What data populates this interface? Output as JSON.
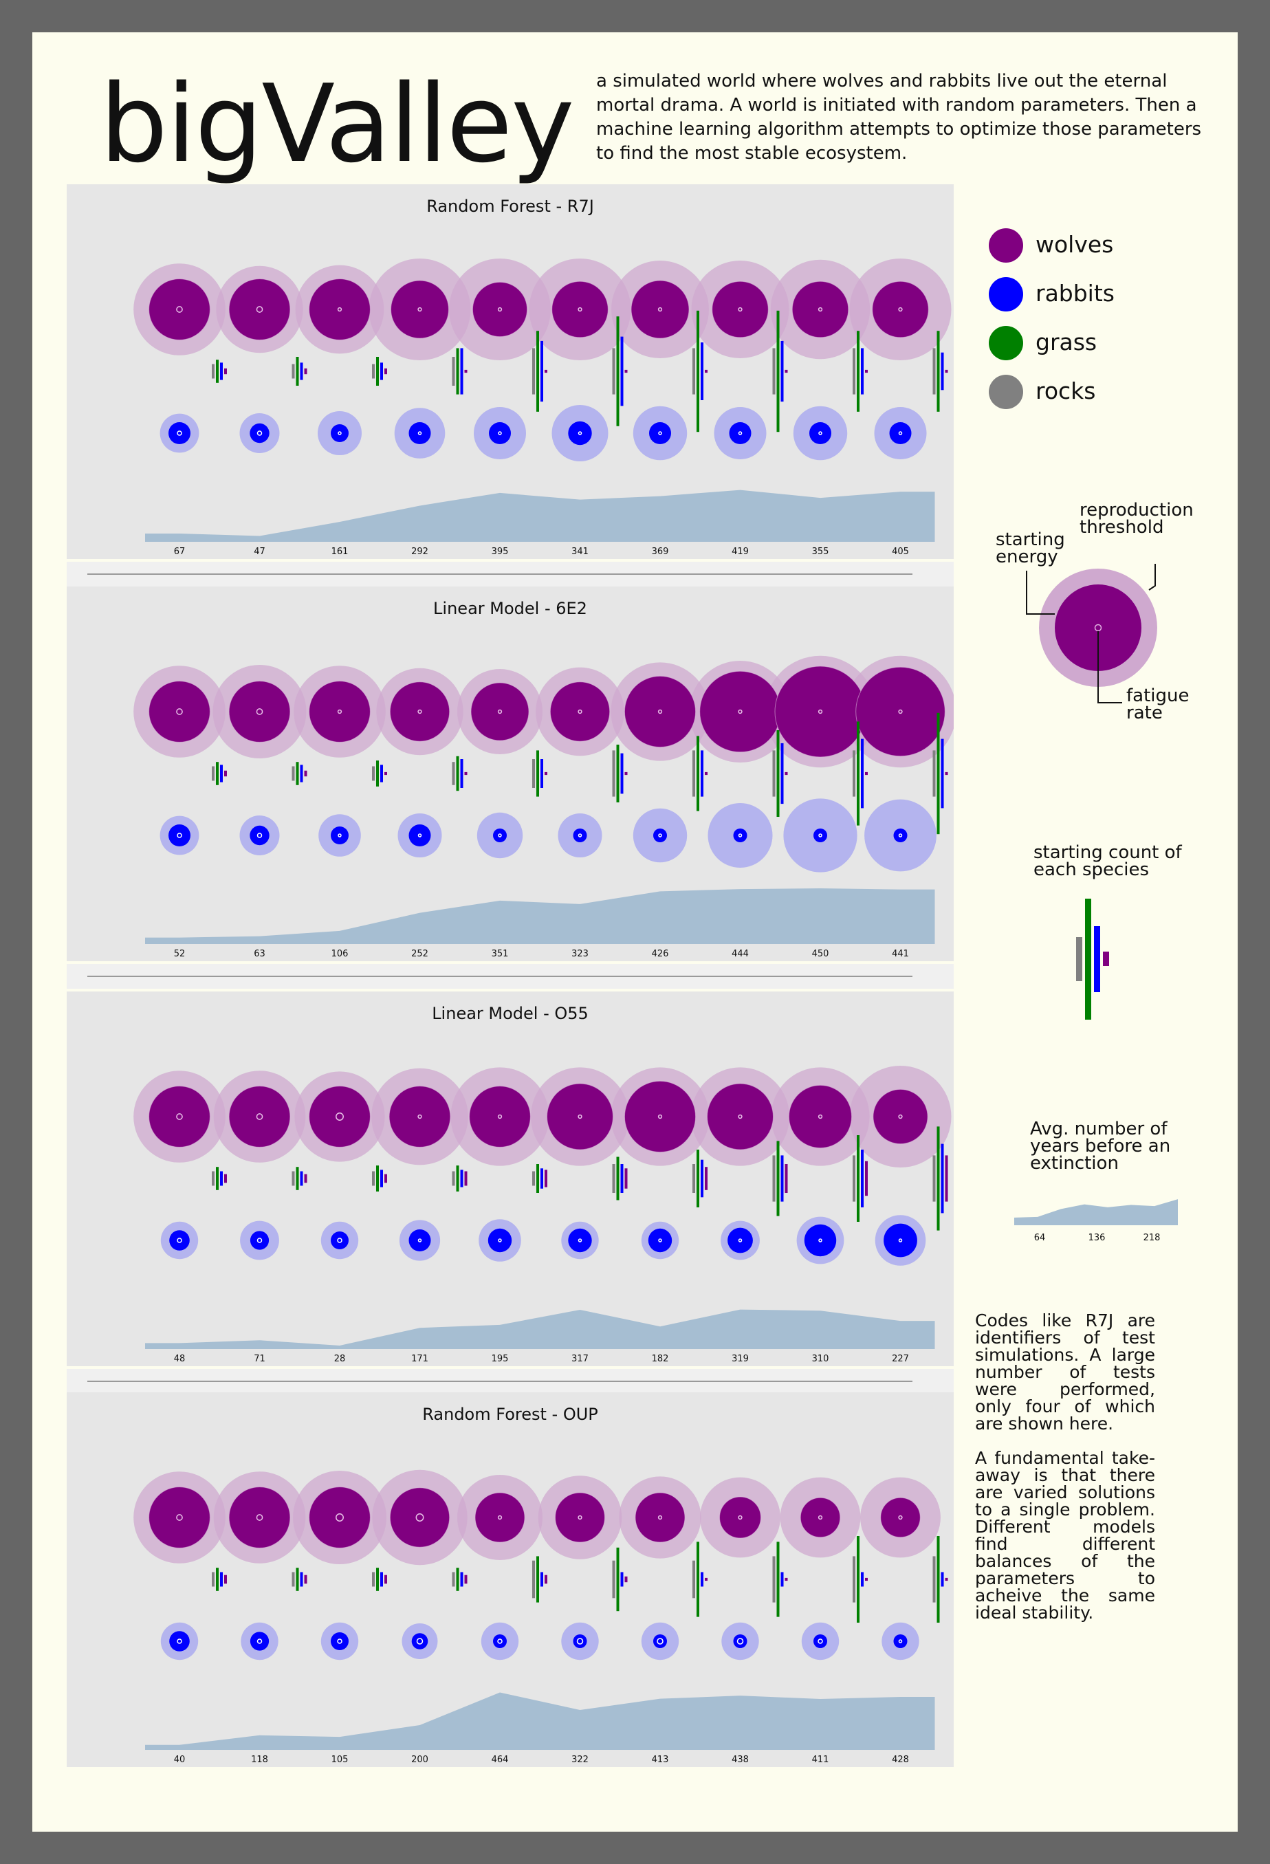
{
  "title": "bigValley",
  "intro": "a simulated world where wolves and rabbits live out the eternal mortal drama. A world is initiated with random parameters. Then a machine learning algorithm attempts to optimize those parameters to find the most stable ecosystem.",
  "colors": {
    "wolves": "#800080",
    "wolves_halo": "#cfa9cf",
    "rabbits": "#0000ff",
    "rabbits_halo": "#b4b4ee",
    "grass": "#008000",
    "rocks": "#808080",
    "area": "#a6bed2",
    "panel_bg": "#e6e6e6"
  },
  "legend": [
    {
      "label": "wolves",
      "color": "#800080"
    },
    {
      "label": "rabbits",
      "color": "#0000ff"
    },
    {
      "label": "grass",
      "color": "#008000"
    },
    {
      "label": "rocks",
      "color": "#808080"
    }
  ],
  "annotations": {
    "reproduction_threshold": "reproduction threshold",
    "starting_energy": "starting energy",
    "fatigue_rate": "fatigue rate",
    "starting_count": "starting count of each species",
    "avg_years": "Avg. number of years before an extinction",
    "mini_values": [
      64,
      136,
      218
    ]
  },
  "notes": [
    "Codes like R7J are identifiers of test simulations. A large number of tests were performed, only four of which are shown here.",
    "A fundamental take-away is that there are varied solutions to a single problem. Different models find different balances of the parameters to acheive the same ideal stability."
  ],
  "chart_data": [
    {
      "type": "area",
      "title": "Random Forest - R7J",
      "years_to_extinction": [
        67,
        47,
        161,
        292,
        395,
        341,
        369,
        419,
        355,
        405
      ],
      "wolves": {
        "energy": [
          0.74,
          0.74,
          0.74,
          0.7,
          0.66,
          0.68,
          0.7,
          0.68,
          0.68,
          0.68
        ],
        "threshold": [
          0.88,
          0.82,
          0.84,
          1.0,
          1.0,
          1.0,
          0.95,
          0.95,
          0.97,
          1.0
        ],
        "fatigue": [
          0.22,
          0.22,
          0.1,
          0.1,
          0.1,
          0.1,
          0.1,
          0.1,
          0.1,
          0.1
        ]
      },
      "rabbits": {
        "energy": [
          0.2,
          0.17,
          0.15,
          0.2,
          0.2,
          0.22,
          0.2,
          0.2,
          0.2,
          0.2
        ],
        "threshold": [
          0.24,
          0.25,
          0.3,
          0.38,
          0.4,
          0.45,
          0.42,
          0.4,
          0.42,
          0.4
        ],
        "fatigue": [
          0.2,
          0.2,
          0.1,
          0.1,
          0.1,
          0.1,
          0.1,
          0.1,
          0.1,
          0.1
        ]
      },
      "counts": {
        "rocks": [
          0.5,
          0.5,
          0.5,
          1.0,
          1.6,
          1.6,
          1.6,
          1.6,
          1.6,
          1.6
        ],
        "grass": [
          0.8,
          1.0,
          1.0,
          1.6,
          2.8,
          3.8,
          4.2,
          4.2,
          2.8,
          2.8
        ],
        "rabbits": [
          0.6,
          0.6,
          0.6,
          1.6,
          2.1,
          2.4,
          2.0,
          2.1,
          1.6,
          1.3
        ],
        "wolves": [
          0.2,
          0.2,
          0.2,
          0.1,
          0.1,
          0.1,
          0.1,
          0.1,
          0.1,
          0.1
        ]
      }
    },
    {
      "type": "area",
      "title": "Linear Model - 6E2",
      "years_to_extinction": [
        52,
        63,
        106,
        252,
        351,
        323,
        426,
        444,
        450,
        441
      ],
      "wolves": {
        "energy": [
          0.74,
          0.74,
          0.74,
          0.72,
          0.7,
          0.72,
          0.86,
          0.98,
          1.1,
          1.08
        ],
        "threshold": [
          0.88,
          0.9,
          0.88,
          0.82,
          0.8,
          0.84,
          0.96,
          1.0,
          1.12,
          1.12
        ],
        "fatigue": [
          0.22,
          0.22,
          0.1,
          0.1,
          0.1,
          0.1,
          0.1,
          0.1,
          0.1,
          0.1
        ]
      },
      "rabbits": {
        "energy": [
          0.2,
          0.17,
          0.15,
          0.2,
          0.1,
          0.1,
          0.1,
          0.1,
          0.1,
          0.1
        ],
        "threshold": [
          0.24,
          0.25,
          0.28,
          0.3,
          0.32,
          0.3,
          0.42,
          0.55,
          0.66,
          0.64
        ],
        "fatigue": [
          0.2,
          0.2,
          0.1,
          0.1,
          0.1,
          0.1,
          0.1,
          0.1,
          0.1,
          0.1
        ]
      },
      "counts": {
        "rocks": [
          0.5,
          0.5,
          0.5,
          0.8,
          1.0,
          1.6,
          1.6,
          1.6,
          1.6,
          1.6
        ],
        "grass": [
          0.8,
          0.8,
          0.9,
          1.2,
          1.6,
          2.0,
          2.6,
          3.0,
          3.6,
          4.2
        ],
        "rabbits": [
          0.6,
          0.6,
          0.6,
          1.0,
          1.0,
          1.4,
          1.6,
          2.1,
          2.4,
          2.4
        ],
        "wolves": [
          0.2,
          0.2,
          0.1,
          0.1,
          0.1,
          0.1,
          0.1,
          0.1,
          0.1,
          0.1
        ]
      }
    },
    {
      "type": "area",
      "title": "Linear Model - O55",
      "years_to_extinction": [
        48,
        71,
        28,
        171,
        195,
        317,
        182,
        319,
        310,
        227
      ],
      "wolves": {
        "energy": [
          0.74,
          0.74,
          0.74,
          0.74,
          0.74,
          0.8,
          0.86,
          0.8,
          0.76,
          0.66
        ],
        "threshold": [
          0.88,
          0.88,
          0.86,
          0.94,
          0.96,
          0.96,
          0.96,
          0.96,
          0.96,
          1.0
        ],
        "fatigue": [
          0.22,
          0.22,
          0.3,
          0.1,
          0.1,
          0.1,
          0.1,
          0.1,
          0.1,
          0.1
        ]
      },
      "rabbits": {
        "energy": [
          0.18,
          0.16,
          0.15,
          0.2,
          0.22,
          0.22,
          0.22,
          0.24,
          0.32,
          0.34
        ],
        "threshold": [
          0.22,
          0.24,
          0.22,
          0.26,
          0.28,
          0.22,
          0.22,
          0.24,
          0.34,
          0.38
        ],
        "fatigue": [
          0.2,
          0.2,
          0.2,
          0.1,
          0.1,
          0.1,
          0.1,
          0.1,
          0.1,
          0.1
        ]
      },
      "counts": {
        "rocks": [
          0.5,
          0.5,
          0.5,
          0.5,
          0.5,
          1.0,
          1.0,
          1.6,
          1.6,
          1.6
        ],
        "grass": [
          0.8,
          0.8,
          0.9,
          0.9,
          1.0,
          1.5,
          2.0,
          2.6,
          3.0,
          3.6
        ],
        "rabbits": [
          0.5,
          0.5,
          0.6,
          0.6,
          0.7,
          1.0,
          1.3,
          1.6,
          2.0,
          2.4
        ],
        "wolves": [
          0.3,
          0.3,
          0.3,
          0.5,
          0.6,
          0.7,
          0.8,
          1.0,
          1.2,
          1.6
        ]
      }
    },
    {
      "type": "area",
      "title": "Random Forest - OUP",
      "years_to_extinction": [
        40,
        118,
        105,
        200,
        464,
        322,
        413,
        438,
        411,
        428
      ],
      "wolves": {
        "energy": [
          0.74,
          0.74,
          0.74,
          0.72,
          0.6,
          0.6,
          0.6,
          0.5,
          0.48,
          0.48
        ],
        "threshold": [
          0.88,
          0.88,
          0.9,
          0.92,
          0.8,
          0.78,
          0.76,
          0.74,
          0.74,
          0.74
        ],
        "fatigue": [
          0.22,
          0.22,
          0.3,
          0.3,
          0.1,
          0.1,
          0.1,
          0.1,
          0.1,
          0.1
        ]
      },
      "rabbits": {
        "energy": [
          0.18,
          0.16,
          0.15,
          0.13,
          0.1,
          0.1,
          0.1,
          0.1,
          0.1,
          0.1
        ],
        "threshold": [
          0.22,
          0.22,
          0.22,
          0.2,
          0.22,
          0.22,
          0.22,
          0.22,
          0.22,
          0.22
        ],
        "fatigue": [
          0.2,
          0.2,
          0.2,
          0.3,
          0.2,
          0.3,
          0.3,
          0.3,
          0.2,
          0.1
        ]
      },
      "counts": {
        "rocks": [
          0.5,
          0.5,
          0.5,
          0.5,
          1.3,
          1.3,
          1.3,
          1.6,
          1.6,
          1.6
        ],
        "grass": [
          0.8,
          0.8,
          0.8,
          0.8,
          1.6,
          2.2,
          2.6,
          2.6,
          3.0,
          3.0
        ],
        "rabbits": [
          0.5,
          0.5,
          0.5,
          0.5,
          0.5,
          0.5,
          0.5,
          0.5,
          0.5,
          0.5
        ],
        "wolves": [
          0.3,
          0.3,
          0.3,
          0.3,
          0.3,
          0.2,
          0.1,
          0.1,
          0.1,
          0.1
        ]
      }
    }
  ]
}
